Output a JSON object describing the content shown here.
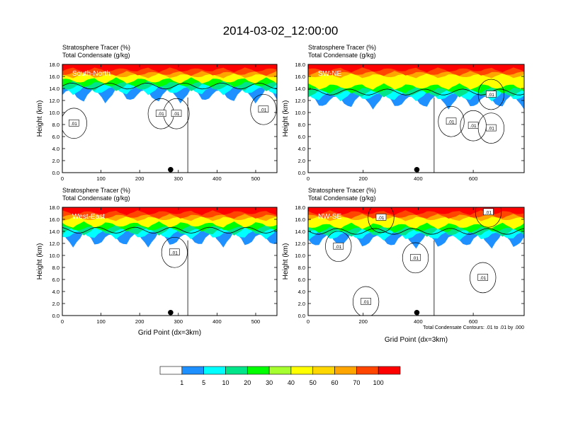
{
  "title": "2014-03-02_12:00:00",
  "colors": {
    "shade_levels": [
      "#ffffff",
      "#1e90ff",
      "#00ffff",
      "#00e48a",
      "#00ff00",
      "#a6ff2f",
      "#ffff00",
      "#ffd700",
      "#ffa500",
      "#ff4500",
      "#ff0000"
    ],
    "contour": "#000000"
  },
  "chart_data": [
    {
      "type": "heatmap",
      "name_label": "South-North",
      "subtitle_1": "Stratosphere Tracer   (%)",
      "subtitle_2": "Total Condensate   (g/kg)",
      "ylabel": "Height (km)",
      "xlabel": "",
      "xlim": [
        0,
        555
      ],
      "ylim": [
        0,
        18
      ],
      "x_ticks": [
        "0",
        "100",
        "200",
        "300",
        "400",
        "500"
      ],
      "y_ticks": [
        "0.0",
        "2.0",
        "4.0",
        "6.0",
        "8.0",
        "10.0",
        "12.0",
        "14.0",
        "16.0",
        "18.0"
      ],
      "tracer_top": 18,
      "tracer_red_base": 16.5,
      "tracer_base": 13.2,
      "contour_labels": [
        ".01",
        ".01",
        ".01",
        ".01"
      ],
      "contour_label_pos": [
        [
          30,
          8.2
        ],
        [
          255,
          9.8
        ],
        [
          295,
          9.8
        ],
        [
          520,
          10.5
        ]
      ],
      "dot_x": 280
    },
    {
      "type": "heatmap",
      "name_label": "SW-NE",
      "subtitle_1": "Stratosphere Tracer   (%)",
      "subtitle_2": "Total Condensate   (g/kg)",
      "ylabel": "Height (km)",
      "xlabel": "",
      "xlim": [
        0,
        785
      ],
      "ylim": [
        0,
        18
      ],
      "x_ticks": [
        "0",
        "200",
        "400",
        "600"
      ],
      "y_ticks": [
        "0.0",
        "2.0",
        "4.0",
        "6.0",
        "8.0",
        "10.0",
        "12.0",
        "14.0",
        "16.0",
        "18.0"
      ],
      "tracer_top": 18,
      "tracer_red_base": 16.5,
      "tracer_base": 12.2,
      "contour_labels": [
        ".01",
        ".01",
        ".01",
        ".01"
      ],
      "contour_label_pos": [
        [
          520,
          8.5
        ],
        [
          600,
          7.8
        ],
        [
          665,
          7.4
        ],
        [
          665,
          13.0
        ]
      ],
      "dot_x": 395
    },
    {
      "type": "heatmap",
      "name_label": "West-East",
      "subtitle_1": "Stratosphere Tracer   (%)",
      "subtitle_2": "Total Condensate   (g/kg)",
      "ylabel": "Height (km)",
      "xlabel": "Grid Point (dx=3km)",
      "xlim": [
        0,
        555
      ],
      "ylim": [
        0,
        18
      ],
      "x_ticks": [
        "0",
        "100",
        "200",
        "300",
        "400",
        "500"
      ],
      "y_ticks": [
        "0.0",
        "2.0",
        "4.0",
        "6.0",
        "8.0",
        "10.0",
        "12.0",
        "14.0",
        "16.0",
        "18.0"
      ],
      "tracer_top": 18,
      "tracer_red_base": 16.5,
      "tracer_base": 13.0,
      "contour_labels": [
        ".01"
      ],
      "contour_label_pos": [
        [
          290,
          10.5
        ]
      ],
      "dot_x": 280
    },
    {
      "type": "heatmap",
      "name_label": "NW-SE",
      "subtitle_1": "Stratosphere Tracer   (%)",
      "subtitle_2": "Total Condensate   (g/kg)",
      "ylabel": "Height (km)",
      "xlabel": "Grid Point (dx=3km)",
      "xlim": [
        0,
        785
      ],
      "ylim": [
        0,
        18
      ],
      "x_ticks": [
        "0",
        "200",
        "400",
        "600"
      ],
      "y_ticks": [
        "0.0",
        "2.0",
        "4.0",
        "6.0",
        "8.0",
        "10.0",
        "12.0",
        "14.0",
        "16.0",
        "18.0"
      ],
      "tracer_top": 18,
      "tracer_red_base": 16.5,
      "tracer_base": 12.8,
      "contour_labels": [
        ".01",
        ".01",
        ".01",
        ".01",
        ".01",
        ".01"
      ],
      "contour_label_pos": [
        [
          110,
          11.5
        ],
        [
          265,
          16.3
        ],
        [
          390,
          9.6
        ],
        [
          655,
          17.2
        ],
        [
          635,
          6.3
        ],
        [
          210,
          2.3
        ]
      ],
      "dot_x": 395,
      "footnote": "Total Condensate Contours: .01 to .01 by .000"
    }
  ],
  "colorbar": {
    "labels": [
      "1",
      "5",
      "10",
      "20",
      "30",
      "40",
      "50",
      "60",
      "70",
      "100"
    ]
  }
}
